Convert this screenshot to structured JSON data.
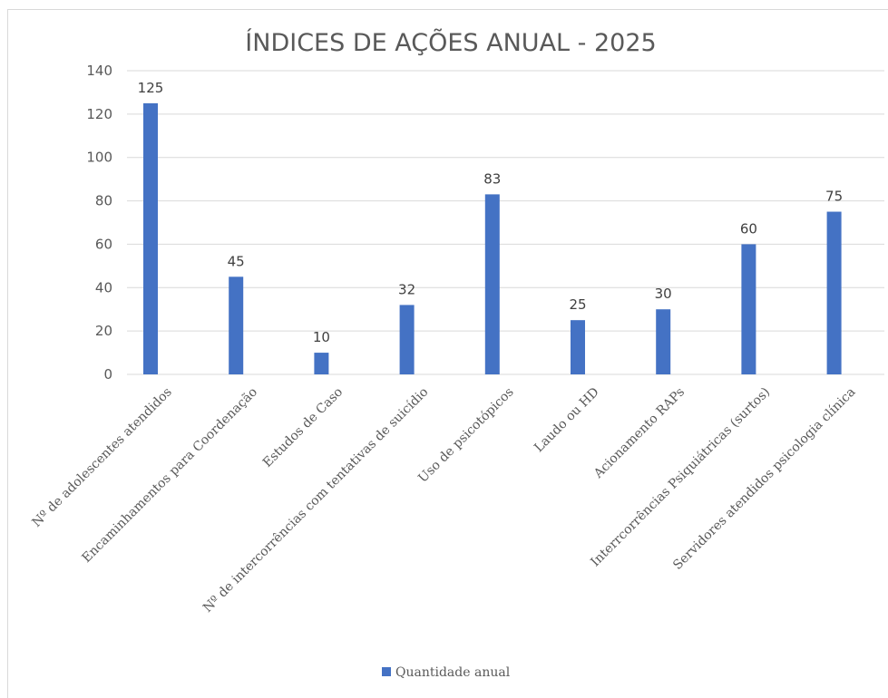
{
  "chart_data": {
    "type": "bar",
    "title": "ÍNDICES DE AÇÕES ANUAL - 2025",
    "categories": [
      "Nº de adolescentes atendidos",
      "Encaminhamentos para Coordenação",
      "Estudos de Caso",
      "Nº de intercorrências com  tentativas de suicídio",
      "Uso de psicotópicos",
      "Laudo ou HD",
      "Acionamento RAPs",
      "Interrcorrências Psiquiátricas  (surtos)",
      "Servidores atendidos psicologia clínica"
    ],
    "series": [
      {
        "name": "Quantidade anual",
        "values": [
          125,
          45,
          10,
          32,
          83,
          25,
          30,
          60,
          75
        ],
        "color": "#4472c4"
      }
    ],
    "ylim": [
      0,
      140
    ],
    "yticks": [
      0,
      20,
      40,
      60,
      80,
      100,
      120,
      140
    ],
    "grid": true,
    "legend_position": "bottom",
    "data_labels": true,
    "gridline_color": "#d9d9d9",
    "text_color": "#595959"
  }
}
